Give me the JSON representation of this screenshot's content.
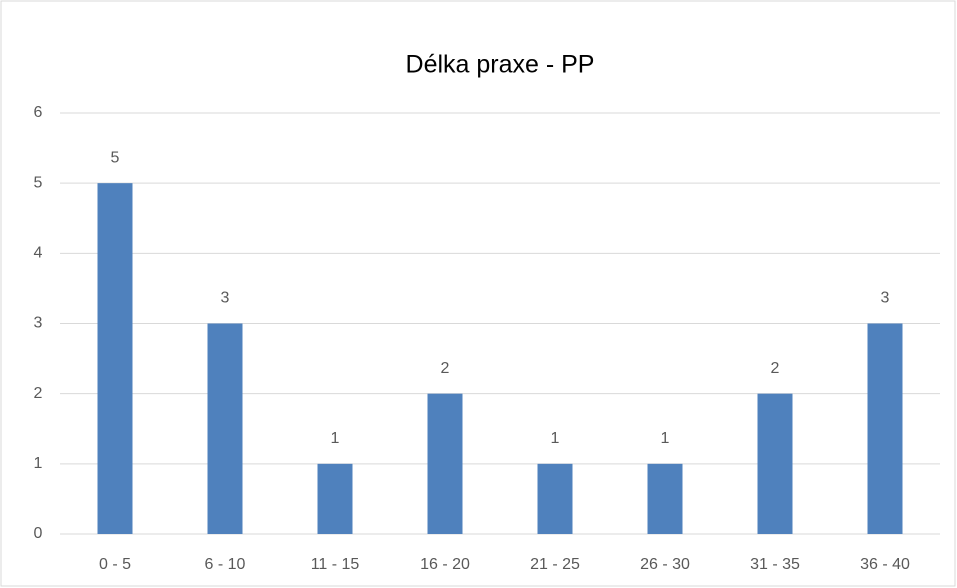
{
  "chart_data": {
    "type": "bar",
    "title": "Délka praxe - PP",
    "categories": [
      "0 - 5",
      "6 - 10",
      "11 - 15",
      "16 - 20",
      "21 - 25",
      "26 - 30",
      "31 - 35",
      "36 - 40"
    ],
    "values": [
      5,
      3,
      1,
      2,
      1,
      1,
      2,
      3
    ],
    "color": "#4f81bd",
    "ylim": [
      0,
      6
    ],
    "yticks": [
      0,
      1,
      2,
      3,
      4,
      5,
      6
    ],
    "grid": true
  }
}
